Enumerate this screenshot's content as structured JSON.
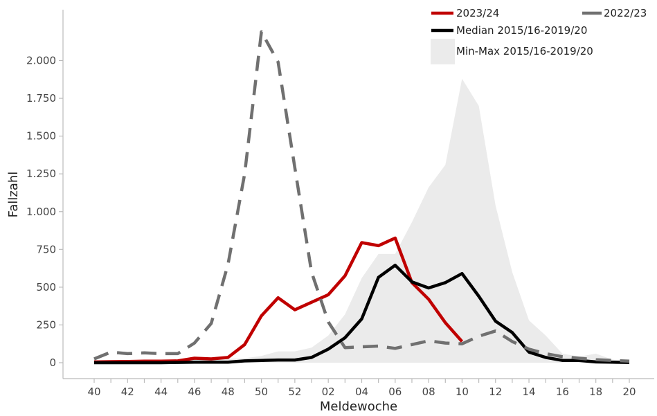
{
  "chart_data": {
    "type": "line",
    "xlabel": "Meldewoche",
    "ylabel": "Fallzahl",
    "ylim": [
      0,
      2200
    ],
    "y_ticks": [
      {
        "value": 0,
        "label": "0"
      },
      {
        "value": 250,
        "label": "250"
      },
      {
        "value": 500,
        "label": "500"
      },
      {
        "value": 750,
        "label": "750"
      },
      {
        "value": 1000,
        "label": "1.000"
      },
      {
        "value": 1250,
        "label": "1.250"
      },
      {
        "value": 1500,
        "label": "1.500"
      },
      {
        "value": 1750,
        "label": "1.750"
      },
      {
        "value": 2000,
        "label": "2.000"
      }
    ],
    "categories": [
      "40",
      "41",
      "42",
      "43",
      "44",
      "45",
      "46",
      "47",
      "48",
      "49",
      "50",
      "51",
      "52",
      "01",
      "02",
      "03",
      "04",
      "05",
      "06",
      "07",
      "08",
      "09",
      "10",
      "11",
      "12",
      "13",
      "14",
      "15",
      "16",
      "17",
      "18",
      "19",
      "20"
    ],
    "tick_labels": [
      "40",
      "",
      "42",
      "",
      "44",
      "",
      "46",
      "",
      "48",
      "",
      "50",
      "",
      "52",
      "",
      "02",
      "",
      "04",
      "",
      "06",
      "",
      "08",
      "",
      "10",
      "",
      "12",
      "",
      "14",
      "",
      "16",
      "",
      "18",
      "",
      "20"
    ],
    "grid": false,
    "legend_position": "top-right",
    "band": {
      "name": "Min-Max 2015/16-2019/20",
      "color": "#ebebeb",
      "lower": [
        0,
        0,
        0,
        0,
        0,
        0,
        0,
        0,
        0,
        0,
        0,
        0,
        0,
        0,
        0,
        0,
        0,
        0,
        0,
        0,
        0,
        0,
        0,
        0,
        0,
        0,
        0,
        0,
        0,
        0,
        0,
        0,
        0
      ],
      "upper": [
        5,
        5,
        8,
        10,
        12,
        15,
        20,
        20,
        25,
        30,
        45,
        75,
        75,
        100,
        180,
        320,
        560,
        720,
        720,
        930,
        1160,
        1310,
        1880,
        1700,
        1040,
        600,
        280,
        180,
        60,
        40,
        60,
        20,
        10
      ]
    },
    "series": [
      {
        "name": "2023/24",
        "color": "#c00000",
        "dash": "solid",
        "values": [
          5,
          7,
          8,
          10,
          10,
          12,
          30,
          25,
          35,
          120,
          310,
          430,
          350,
          400,
          450,
          575,
          795,
          775,
          825,
          530,
          420,
          265,
          140,
          null,
          null,
          null,
          null,
          null,
          null,
          null,
          null,
          null,
          null
        ]
      },
      {
        "name": "2022/23",
        "color": "#707070",
        "dash": "dashed",
        "values": [
          25,
          70,
          60,
          65,
          60,
          60,
          130,
          260,
          650,
          1250,
          2190,
          1990,
          1290,
          600,
          270,
          100,
          105,
          110,
          95,
          120,
          145,
          130,
          125,
          175,
          210,
          140,
          90,
          60,
          40,
          30,
          20,
          15,
          10
        ]
      },
      {
        "name": "Median 2015/16-2019/20",
        "color": "#000000",
        "dash": "solid",
        "values": [
          0,
          0,
          0,
          0,
          0,
          2,
          3,
          3,
          3,
          12,
          15,
          18,
          18,
          35,
          90,
          165,
          290,
          565,
          645,
          535,
          495,
          530,
          590,
          440,
          275,
          200,
          70,
          35,
          15,
          15,
          5,
          3,
          2
        ]
      }
    ]
  }
}
